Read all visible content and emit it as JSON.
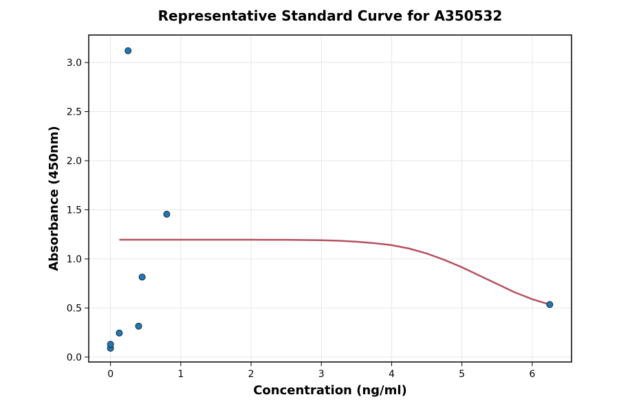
{
  "chart_data": {
    "type": "scatter",
    "title": "Representative Standard Curve for A350532",
    "xlabel": "Concentration (ng/ml)",
    "ylabel": "Absorbance (450nm)",
    "xlim": [
      -0.31,
      6.56
    ],
    "ylim": [
      -0.05,
      3.28
    ],
    "xticks": [
      0,
      1,
      2,
      3,
      4,
      5,
      6
    ],
    "yticks": [
      0.0,
      0.5,
      1.0,
      1.5,
      2.0,
      2.5,
      3.0
    ],
    "xtick_labels": [
      "0",
      "1",
      "2",
      "3",
      "4",
      "5",
      "6"
    ],
    "ytick_labels": [
      "0.0",
      "0.5",
      "1.0",
      "1.5",
      "2.0",
      "2.5",
      "3.0"
    ],
    "grid": true,
    "points": {
      "x": [
        0.0,
        0.0,
        0.125,
        0.25,
        0.4,
        0.45,
        0.8,
        6.25
      ],
      "y": [
        0.09,
        0.13,
        0.245,
        3.12,
        0.315,
        0.815,
        1.455,
        0.535
      ],
      "color": "#1f77b4"
    },
    "fit_curve": {
      "x": [
        0.125,
        0.5,
        1.0,
        1.5,
        2.0,
        2.5,
        3.0,
        3.25,
        3.5,
        3.75,
        4.0,
        4.25,
        4.5,
        4.75,
        5.0,
        5.25,
        5.5,
        5.75,
        6.0,
        6.25
      ],
      "y": [
        1.195,
        1.195,
        1.195,
        1.195,
        1.195,
        1.194,
        1.19,
        1.185,
        1.175,
        1.16,
        1.14,
        1.105,
        1.055,
        0.99,
        0.915,
        0.83,
        0.745,
        0.66,
        0.59,
        0.535
      ],
      "color": "#b5505f"
    }
  }
}
